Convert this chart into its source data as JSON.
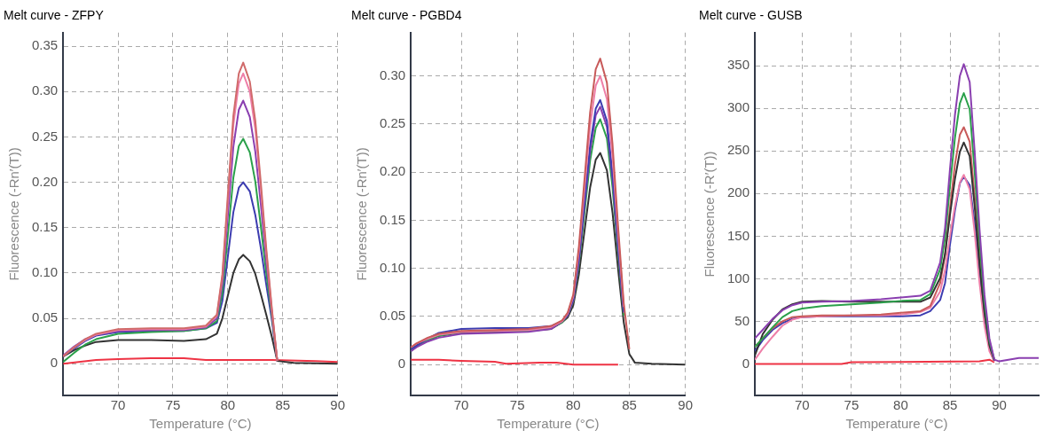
{
  "chart_data": [
    {
      "type": "line",
      "title": "Melt curve - ZFPY",
      "xlabel": "Temperature (°C)",
      "ylabel": "Fluorescence (-Rn′(T))",
      "xlim": [
        65,
        90
      ],
      "xticks": [
        70,
        75,
        80,
        85,
        90
      ],
      "ylim": [
        -0.035,
        0.365
      ],
      "yticks": [
        0,
        0.05,
        {
          "value": 0.1,
          "label": "0.10"
        },
        0.15,
        {
          "value": 0.2,
          "label": "0.20"
        },
        0.25,
        {
          "value": 0.3,
          "label": "0.30"
        },
        0.35
      ],
      "grid": true,
      "legend": false,
      "x": [
        65,
        66,
        67,
        68,
        70,
        73,
        76,
        78,
        79,
        79.5,
        80,
        80.5,
        81,
        81.4,
        82,
        82.5,
        83,
        83.5,
        84,
        84.5,
        86,
        90
      ],
      "series": [
        {
          "color": "#d06a6a",
          "values": [
            0.008,
            0.018,
            0.027,
            0.033,
            0.038,
            0.039,
            0.039,
            0.042,
            0.054,
            0.098,
            0.186,
            0.273,
            0.32,
            0.332,
            0.311,
            0.268,
            0.2,
            0.127,
            0.062,
            0.003,
            null,
            null
          ]
        },
        {
          "color": "#ee7fa8",
          "values": [
            0.008,
            0.018,
            0.026,
            0.032,
            0.037,
            0.038,
            0.038,
            0.041,
            0.053,
            0.095,
            0.179,
            0.263,
            0.309,
            0.32,
            0.3,
            0.259,
            0.193,
            0.123,
            0.06,
            0.003,
            null,
            null
          ]
        },
        {
          "color": "#8a3fb0",
          "values": [
            0.009,
            0.019,
            0.027,
            0.032,
            0.036,
            0.037,
            0.037,
            0.04,
            0.05,
            0.088,
            0.163,
            0.239,
            0.28,
            0.29,
            0.272,
            0.234,
            0.176,
            0.113,
            0.057,
            0.003,
            null,
            null
          ]
        },
        {
          "color": "#2aa04a",
          "values": [
            0.002,
            0.012,
            0.021,
            0.027,
            0.033,
            0.035,
            0.036,
            0.039,
            0.047,
            0.078,
            0.142,
            0.205,
            0.24,
            0.248,
            0.233,
            0.201,
            0.152,
            0.1,
            0.053,
            0.003,
            null,
            null
          ]
        },
        {
          "color": "#3c3cb0",
          "values": [
            0.008,
            0.017,
            0.025,
            0.031,
            0.035,
            0.036,
            0.036,
            0.039,
            0.045,
            0.069,
            0.118,
            0.167,
            0.194,
            0.2,
            0.19,
            0.164,
            0.128,
            0.087,
            0.049,
            0.003,
            null,
            null
          ]
        },
        {
          "color": "#333333",
          "values": [
            0.008,
            0.015,
            0.02,
            0.024,
            0.026,
            0.026,
            0.025,
            0.027,
            0.033,
            0.05,
            0.075,
            0.1,
            0.115,
            0.12,
            0.113,
            0.099,
            0.077,
            0.054,
            0.03,
            0.003,
            0.001,
            0
          ]
        },
        {
          "color": "#ee3344",
          "x": [
            65,
            68,
            70,
            73,
            76,
            78,
            84,
            88,
            90
          ],
          "values": [
            0,
            0.004,
            0.005,
            0.006,
            0.006,
            0.004,
            0.004,
            0.003,
            0.002
          ]
        }
      ]
    },
    {
      "type": "line",
      "title": "Melt curve - PGBD4",
      "xlabel": "Temperature (°C)",
      "ylabel": "Fluorescence (-Rn′(T))",
      "xlim": [
        65.5,
        90
      ],
      "xticks": [
        70,
        75,
        80,
        85,
        90
      ],
      "ylim": [
        -0.032,
        0.345
      ],
      "yticks": [
        0,
        0.05,
        {
          "value": 0.1,
          "label": "0.10"
        },
        0.15,
        {
          "value": 0.2,
          "label": "0.20"
        },
        0.25,
        {
          "value": 0.3,
          "label": "0.30"
        }
      ],
      "grid": true,
      "legend": false,
      "x": [
        65.5,
        66,
        67,
        68,
        70,
        73,
        76,
        78,
        79,
        79.5,
        80,
        80.5,
        81,
        81.5,
        82,
        82.4,
        83,
        83.5,
        84,
        84.5,
        85,
        85.5,
        87,
        90
      ],
      "series": [
        {
          "color": "#c85a5a",
          "values": [
            0.018,
            0.022,
            0.028,
            0.032,
            0.035,
            0.036,
            0.037,
            0.04,
            0.046,
            0.054,
            0.073,
            0.123,
            0.193,
            0.262,
            0.307,
            0.318,
            0.293,
            0.229,
            0.143,
            0.064,
            0.016,
            null,
            null,
            null
          ]
        },
        {
          "color": "#ee7fa8",
          "values": [
            0.018,
            0.022,
            0.027,
            0.031,
            0.034,
            0.035,
            0.036,
            0.039,
            0.045,
            0.053,
            0.071,
            0.118,
            0.183,
            0.248,
            0.29,
            0.3,
            0.276,
            0.216,
            0.135,
            0.06,
            null,
            null,
            null,
            null
          ]
        },
        {
          "color": "#3c3cb0",
          "values": [
            0.016,
            0.02,
            0.027,
            0.033,
            0.037,
            0.038,
            0.038,
            0.04,
            0.045,
            0.052,
            0.068,
            0.111,
            0.169,
            0.228,
            0.266,
            0.275,
            0.253,
            0.198,
            0.124,
            0.055,
            null,
            null,
            null,
            null
          ]
        },
        {
          "color": "#8a3fb0",
          "values": [
            0.014,
            0.018,
            0.024,
            0.028,
            0.032,
            0.033,
            0.034,
            0.037,
            0.045,
            0.051,
            0.067,
            0.108,
            0.165,
            0.222,
            0.259,
            0.268,
            0.247,
            0.193,
            0.121,
            0.054,
            null,
            null,
            null,
            null
          ]
        },
        {
          "color": "#2aa04a",
          "values": [
            0.014,
            0.019,
            0.025,
            0.03,
            0.034,
            0.035,
            0.035,
            0.038,
            0.044,
            0.051,
            0.066,
            0.105,
            0.158,
            0.212,
            0.246,
            0.255,
            0.235,
            0.184,
            0.115,
            0.051,
            null,
            null,
            null,
            null
          ]
        },
        {
          "color": "#333333",
          "values": [
            0.015,
            0.019,
            0.025,
            0.03,
            0.033,
            0.034,
            0.035,
            0.037,
            0.044,
            0.049,
            0.062,
            0.094,
            0.139,
            0.184,
            0.213,
            0.22,
            0.202,
            0.158,
            0.099,
            0.044,
            0.011,
            0.002,
            0.001,
            0
          ]
        },
        {
          "color": "#ee3344",
          "x": [
            65.5,
            68,
            70,
            73,
            74,
            77,
            78.5,
            80,
            84
          ],
          "values": [
            0.005,
            0.005,
            0.004,
            0.003,
            0.001,
            0.002,
            0.002,
            0,
            0
          ]
        }
      ]
    },
    {
      "type": "line",
      "title": "Melt curve - GUSB",
      "xlabel": "Temperature (°C)",
      "ylabel": "Fluorescence (-R′(T))",
      "xlim": [
        65.2,
        94
      ],
      "xticks": [
        70,
        75,
        80,
        85,
        90
      ],
      "ylim": [
        -37,
        389
      ],
      "yticks": [
        0,
        50,
        100,
        150,
        200,
        250,
        300,
        350
      ],
      "grid": true,
      "legend": false,
      "x": [
        65.2,
        66,
        67,
        68,
        69,
        70,
        72,
        75,
        78,
        80,
        82,
        83,
        84,
        84.5,
        85,
        85.5,
        86,
        86.4,
        87,
        87.5,
        88,
        88.5,
        89,
        89.5,
        90,
        92,
        94
      ],
      "series": [
        {
          "color": "#8a3fb0",
          "values": [
            30,
            40,
            53,
            63,
            69,
            72,
            73,
            74,
            76,
            78,
            80,
            86,
            119,
            160,
            229,
            292,
            338,
            352,
            331,
            250,
            158,
            81,
            30,
            5,
            3,
            7,
            7
          ]
        },
        {
          "color": "#2aa04a",
          "values": [
            20,
            30,
            43,
            55,
            62,
            65,
            68,
            70,
            72,
            74,
            75,
            82,
            111,
            148,
            209,
            265,
            306,
            318,
            299,
            226,
            143,
            73,
            27,
            5,
            null,
            null,
            null
          ]
        },
        {
          "color": "#333333",
          "values": [
            10,
            35,
            52,
            64,
            70,
            73,
            74,
            73,
            73,
            73,
            73,
            78,
            101,
            129,
            175,
            217,
            249,
            260,
            244,
            185,
            117,
            60,
            22,
            4,
            null,
            null,
            null
          ]
        },
        {
          "color": "#c85a5a",
          "values": [
            20,
            30,
            42,
            50,
            55,
            56,
            57,
            57,
            58,
            60,
            62,
            68,
            95,
            128,
            183,
            234,
            269,
            278,
            261,
            197,
            125,
            64,
            24,
            4,
            null,
            null,
            null
          ]
        },
        {
          "color": "#ee7fa8",
          "values": [
            5,
            18,
            32,
            45,
            52,
            55,
            56,
            57,
            57,
            58,
            61,
            66,
            85,
            110,
            150,
            185,
            213,
            222,
            205,
            155,
            95,
            45,
            15,
            3,
            null,
            null,
            null
          ]
        },
        {
          "color": "#3c3cb0",
          "values": [
            15,
            28,
            40,
            48,
            53,
            55,
            56,
            56,
            56,
            56,
            57,
            62,
            75,
            95,
            140,
            180,
            212,
            220,
            210,
            165,
            105,
            55,
            20,
            4,
            null,
            null,
            null
          ]
        },
        {
          "color": "#ee3344",
          "x": [
            65.2,
            74,
            75,
            88,
            89,
            89.5
          ],
          "values": [
            0,
            0,
            2,
            3,
            5,
            2
          ]
        }
      ]
    }
  ]
}
